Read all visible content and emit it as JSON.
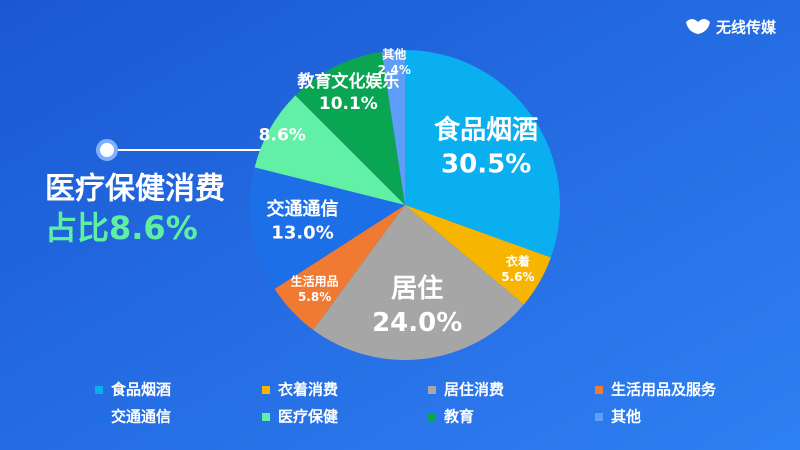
{
  "chart_data": {
    "type": "pie",
    "brand": "无线传媒",
    "callout_title": "医疗保健消费",
    "callout_value": "占比8.6%",
    "categories": [
      "食品烟酒",
      "衣着消费",
      "居住消费",
      "生活用品及服务",
      "交通通信",
      "医疗保健",
      "教育",
      "其他"
    ],
    "slice_labels": [
      "食品烟酒",
      "衣着",
      "居住",
      "生活用品",
      "交通通信",
      null,
      "教育文化娱乐",
      "其他"
    ],
    "values": [
      30.5,
      5.6,
      24.0,
      5.8,
      13.0,
      8.6,
      10.1,
      2.4
    ],
    "value_labels": [
      "30.5%",
      "5.6%",
      "24.0%",
      "5.8%",
      "13.0%",
      "8.6%",
      "10.1%",
      "2.4%"
    ],
    "colors": [
      "#0aaff0",
      "#f7b500",
      "#a6a6a6",
      "#f07a32",
      "#1c6fe6",
      "#62f0a6",
      "#0aa552",
      "#5e9ef8"
    ],
    "legend": "bottom"
  }
}
